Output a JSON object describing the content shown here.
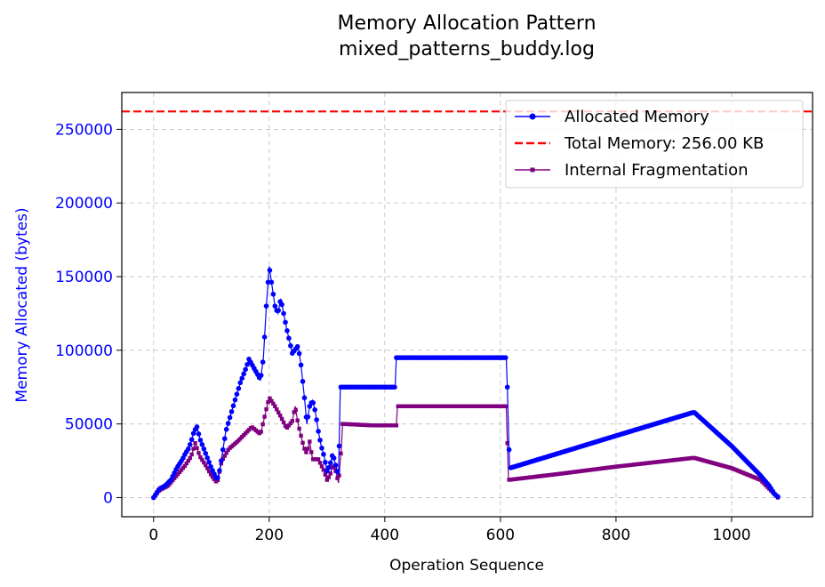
{
  "chart_data": {
    "type": "line",
    "title": "Memory Allocation Pattern",
    "subtitle": "mixed_patterns_buddy.log",
    "xlabel": "Operation Sequence",
    "ylabel": "Memory Allocated (bytes)",
    "xlim": [
      -55,
      1140
    ],
    "ylim": [
      -13000,
      275000
    ],
    "xticks": [
      0,
      200,
      400,
      600,
      800,
      1000
    ],
    "yticks": [
      0,
      50000,
      100000,
      150000,
      200000,
      250000
    ],
    "grid": true,
    "legend_position": "top-right",
    "colors": {
      "allocated": "#0000ff",
      "total": "#ff0000",
      "fragmentation": "#800080",
      "ylabel": "#0000ff",
      "grid": "#b0b0b0"
    },
    "total_memory": {
      "name": "Total Memory: 256.00 KB",
      "value": 262144
    },
    "series": [
      {
        "name": "Allocated Memory",
        "points": [
          [
            0,
            0
          ],
          [
            5,
            3000
          ],
          [
            10,
            6000
          ],
          [
            20,
            8000
          ],
          [
            30,
            12000
          ],
          [
            40,
            20000
          ],
          [
            50,
            26000
          ],
          [
            55,
            30000
          ],
          [
            60,
            33000
          ],
          [
            65,
            38000
          ],
          [
            70,
            45000
          ],
          [
            75,
            48000
          ],
          [
            80,
            40000
          ],
          [
            90,
            30000
          ],
          [
            100,
            20000
          ],
          [
            110,
            12000
          ],
          [
            115,
            20000
          ],
          [
            125,
            45000
          ],
          [
            140,
            65000
          ],
          [
            150,
            78000
          ],
          [
            160,
            88000
          ],
          [
            165,
            94000
          ],
          [
            175,
            87000
          ],
          [
            185,
            80000
          ],
          [
            190,
            95000
          ],
          [
            195,
            130000
          ],
          [
            200,
            157000
          ],
          [
            210,
            130000
          ],
          [
            215,
            125000
          ],
          [
            220,
            135000
          ],
          [
            230,
            115000
          ],
          [
            240,
            98000
          ],
          [
            250,
            103000
          ],
          [
            255,
            90000
          ],
          [
            262,
            64000
          ],
          [
            265,
            50000
          ],
          [
            270,
            62000
          ],
          [
            275,
            66000
          ],
          [
            280,
            58000
          ],
          [
            285,
            45000
          ],
          [
            290,
            35000
          ],
          [
            295,
            28000
          ],
          [
            300,
            18000
          ],
          [
            305,
            22000
          ],
          [
            310,
            30000
          ],
          [
            315,
            22000
          ],
          [
            320,
            15000
          ],
          [
            323,
            75000
          ],
          [
            350,
            75000
          ],
          [
            385,
            75000
          ],
          [
            418,
            75000
          ],
          [
            420,
            95000
          ],
          [
            500,
            95000
          ],
          [
            610,
            95000
          ],
          [
            612,
            75000
          ],
          [
            614,
            45000
          ],
          [
            616,
            20000
          ],
          [
            700,
            30000
          ],
          [
            800,
            42000
          ],
          [
            935,
            58000
          ],
          [
            1000,
            35000
          ],
          [
            1050,
            15000
          ],
          [
            1065,
            8000
          ],
          [
            1075,
            2000
          ],
          [
            1082,
            0
          ]
        ]
      },
      {
        "name": "Internal Fragmentation",
        "points": [
          [
            0,
            0
          ],
          [
            10,
            5000
          ],
          [
            25,
            8000
          ],
          [
            40,
            15000
          ],
          [
            55,
            22000
          ],
          [
            65,
            28000
          ],
          [
            72,
            37000
          ],
          [
            80,
            28000
          ],
          [
            90,
            22000
          ],
          [
            100,
            15000
          ],
          [
            110,
            10000
          ],
          [
            118,
            25000
          ],
          [
            130,
            33000
          ],
          [
            145,
            38000
          ],
          [
            160,
            44000
          ],
          [
            170,
            48000
          ],
          [
            185,
            43000
          ],
          [
            195,
            60000
          ],
          [
            200,
            68000
          ],
          [
            210,
            62000
          ],
          [
            220,
            55000
          ],
          [
            230,
            47000
          ],
          [
            240,
            52000
          ],
          [
            245,
            62000
          ],
          [
            250,
            50000
          ],
          [
            255,
            42000
          ],
          [
            260,
            34000
          ],
          [
            265,
            30000
          ],
          [
            270,
            38000
          ],
          [
            275,
            26000
          ],
          [
            285,
            26000
          ],
          [
            295,
            18000
          ],
          [
            300,
            12000
          ],
          [
            305,
            15000
          ],
          [
            310,
            22000
          ],
          [
            315,
            18000
          ],
          [
            320,
            10000
          ],
          [
            325,
            35000
          ],
          [
            327,
            50000
          ],
          [
            380,
            49000
          ],
          [
            420,
            49000
          ],
          [
            422,
            62000
          ],
          [
            500,
            62000
          ],
          [
            610,
            62000
          ],
          [
            614,
            12000
          ],
          [
            700,
            16000
          ],
          [
            800,
            21000
          ],
          [
            935,
            27000
          ],
          [
            1000,
            20000
          ],
          [
            1050,
            12000
          ],
          [
            1070,
            4000
          ],
          [
            1080,
            0
          ]
        ]
      }
    ]
  }
}
